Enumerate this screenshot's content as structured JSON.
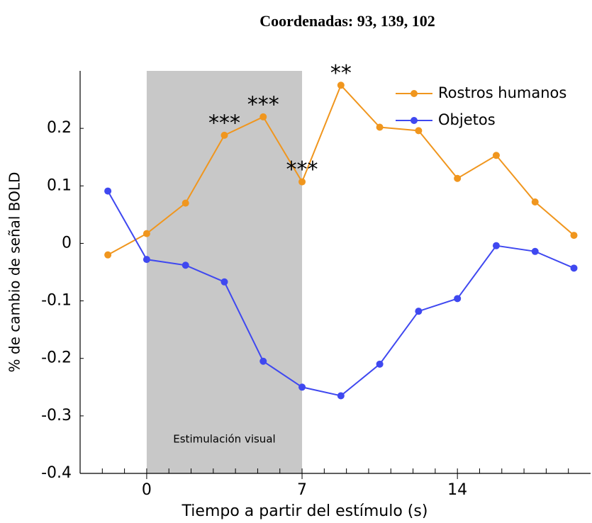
{
  "chart_data": {
    "type": "line",
    "title": "Coordenadas: 93, 139, 102",
    "xlabel": "Tiempo a partir del estímulo (s)",
    "ylabel": "% de cambio de señal BOLD",
    "x": [
      -1.75,
      0,
      1.75,
      3.5,
      5.25,
      7,
      8.75,
      10.5,
      12.25,
      14,
      15.75,
      17.5,
      19.25
    ],
    "series": [
      {
        "name": "Rostros humanos",
        "color": "#f0961e",
        "values": [
          -0.02,
          0.017,
          0.07,
          0.188,
          0.22,
          0.107,
          0.275,
          0.202,
          0.196,
          0.113,
          0.153,
          0.072,
          0.014
        ]
      },
      {
        "name": "Objetos",
        "color": "#3f48f0",
        "values": [
          0.091,
          -0.028,
          -0.038,
          -0.067,
          -0.205,
          -0.25,
          -0.265,
          -0.21,
          -0.118,
          -0.096,
          -0.004,
          -0.014,
          -0.043
        ]
      }
    ],
    "xlim": [
      -3,
      20
    ],
    "xticks": [
      0,
      7,
      14
    ],
    "xminorticks": [
      -2,
      -1,
      0,
      1,
      2,
      3,
      4,
      5,
      6,
      7,
      8,
      9,
      10,
      11,
      12,
      13,
      14,
      15,
      16,
      17,
      18,
      19
    ],
    "ylim": [
      -0.4,
      0.3
    ],
    "yticks": [
      -0.4,
      -0.3,
      -0.2,
      -0.1,
      0,
      0.1,
      0.2
    ],
    "shade": {
      "x": [
        0,
        7
      ],
      "label": "Estimulación visual",
      "color": "#c8c8c8"
    },
    "annotations": [
      {
        "text": "***",
        "x": 3.5
      },
      {
        "text": "***",
        "x": 5.25
      },
      {
        "text": "***",
        "x": 7
      },
      {
        "text": "**",
        "x": 8.75
      }
    ],
    "legend": "upper right"
  }
}
